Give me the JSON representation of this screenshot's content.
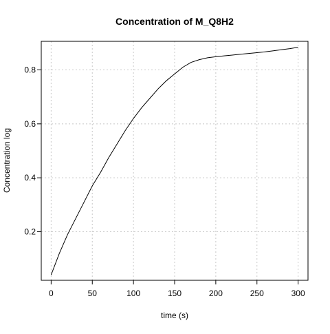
{
  "chart_data": {
    "type": "line",
    "title": "Concentration of M_Q8H2",
    "xlabel": "time (s)",
    "ylabel": "Concentration log",
    "xlim": [
      -12,
      312
    ],
    "ylim": [
      0.02,
      0.906
    ],
    "x_ticks": [
      0,
      50,
      100,
      150,
      200,
      250,
      300
    ],
    "y_ticks": [
      0.2,
      0.4,
      0.6,
      0.8
    ],
    "x_tick_labels": [
      "0",
      "50",
      "100",
      "150",
      "200",
      "250",
      "300"
    ],
    "y_tick_labels": [
      "0.2",
      "0.4",
      "0.6",
      "0.8"
    ],
    "grid": true,
    "legend": "none",
    "line_color": "#000000",
    "series": [
      {
        "x": [
          0,
          10,
          20,
          30,
          40,
          50,
          60,
          70,
          80,
          90,
          100,
          110,
          120,
          130,
          140,
          150,
          160,
          170,
          180,
          190,
          200,
          210,
          220,
          230,
          240,
          250,
          260,
          270,
          280,
          290,
          300
        ],
        "y": [
          0.04,
          0.12,
          0.19,
          0.25,
          0.31,
          0.37,
          0.42,
          0.475,
          0.525,
          0.575,
          0.62,
          0.66,
          0.695,
          0.73,
          0.76,
          0.785,
          0.81,
          0.828,
          0.838,
          0.845,
          0.849,
          0.852,
          0.855,
          0.858,
          0.861,
          0.864,
          0.867,
          0.871,
          0.875,
          0.879,
          0.884
        ]
      }
    ]
  }
}
